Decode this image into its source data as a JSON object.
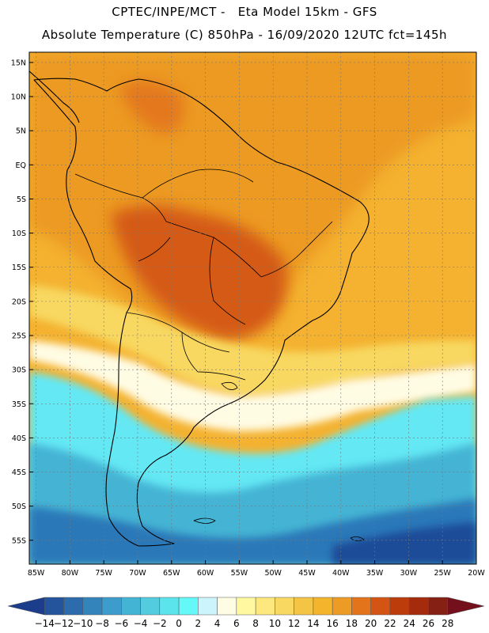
{
  "header": {
    "line1": "CPTEC/INPE/MCT -   Eta Model 15km - GFS",
    "line2": "Absolute Temperature (C) 850hPa - 16/09/2020 12UTC fct=145h"
  },
  "map": {
    "lon_range": [
      -86,
      -20
    ],
    "lat_range": [
      -58.5,
      16.5
    ],
    "lat_ticks": [
      {
        "v": 15,
        "label": "15N"
      },
      {
        "v": 10,
        "label": "10N"
      },
      {
        "v": 5,
        "label": "5N"
      },
      {
        "v": 0,
        "label": "EQ"
      },
      {
        "v": -5,
        "label": "5S"
      },
      {
        "v": -10,
        "label": "10S"
      },
      {
        "v": -15,
        "label": "15S"
      },
      {
        "v": -20,
        "label": "20S"
      },
      {
        "v": -25,
        "label": "25S"
      },
      {
        "v": -30,
        "label": "30S"
      },
      {
        "v": -35,
        "label": "35S"
      },
      {
        "v": -40,
        "label": "40S"
      },
      {
        "v": -45,
        "label": "45S"
      },
      {
        "v": -50,
        "label": "50S"
      },
      {
        "v": -55,
        "label": "55S"
      }
    ],
    "lon_ticks": [
      {
        "v": -85,
        "label": "85W"
      },
      {
        "v": -80,
        "label": "80W"
      },
      {
        "v": -75,
        "label": "75W"
      },
      {
        "v": -70,
        "label": "70W"
      },
      {
        "v": -65,
        "label": "65W"
      },
      {
        "v": -60,
        "label": "60W"
      },
      {
        "v": -55,
        "label": "55W"
      },
      {
        "v": -50,
        "label": "50W"
      },
      {
        "v": -45,
        "label": "45W"
      },
      {
        "v": -40,
        "label": "40W"
      },
      {
        "v": -35,
        "label": "35W"
      },
      {
        "v": -30,
        "label": "30W"
      },
      {
        "v": -25,
        "label": "25W"
      },
      {
        "v": -20,
        "label": "20W"
      }
    ]
  },
  "colorbar": {
    "labels": [
      "-14",
      "-12",
      "-10",
      "-8",
      "-6",
      "-4",
      "-2",
      "0",
      "2",
      "4",
      "6",
      "8",
      "10",
      "12",
      "14",
      "16",
      "18",
      "20",
      "22",
      "24",
      "26",
      "28"
    ],
    "colors": [
      "#1c3c8c",
      "#24549c",
      "#2c6cac",
      "#3484bc",
      "#3c9ccc",
      "#44b4d4",
      "#54cce0",
      "#5ce4ec",
      "#64f8f8",
      "#ccf4fc",
      "#fffce4",
      "#fff8a0",
      "#fce87c",
      "#f8d860",
      "#f4c444",
      "#f4b42c",
      "#ec9c24",
      "#e4741c",
      "#d45414",
      "#bc3c0c",
      "#a42c0c",
      "#842014",
      "#74101c"
    ]
  },
  "colors": {
    "hot": "#d45a14",
    "warm": "#ec9a24",
    "orange": "#f4b230",
    "yellow": "#f8d860",
    "cream": "#fffce4",
    "cold1": "#64e8f4",
    "cold2": "#44b4d4",
    "cold3": "#2c78b8",
    "cold4": "#1c4c98"
  }
}
